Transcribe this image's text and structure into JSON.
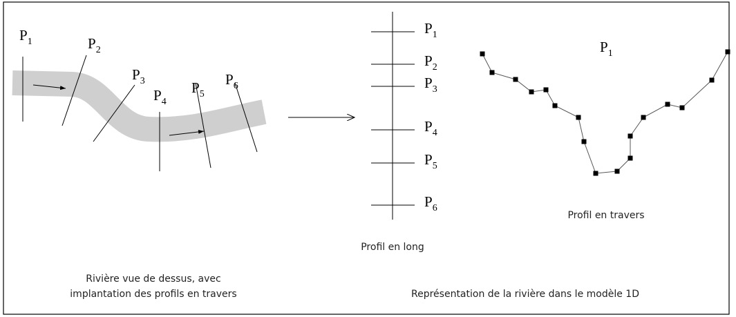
{
  "top_view": {
    "profiles": [
      {
        "base": "P",
        "sub": "1"
      },
      {
        "base": "P",
        "sub": "2"
      },
      {
        "base": "P",
        "sub": "3"
      },
      {
        "base": "P",
        "sub": "4"
      },
      {
        "base": "P",
        "sub": "5"
      },
      {
        "base": "P",
        "sub": "6"
      }
    ],
    "caption": [
      "Rivière vue de dessus, avec",
      "implantation des profils en travers"
    ]
  },
  "long_profile": {
    "profiles": [
      {
        "base": "P",
        "sub": "1"
      },
      {
        "base": "P",
        "sub": "2"
      },
      {
        "base": "P",
        "sub": "3"
      },
      {
        "base": "P",
        "sub": "4"
      },
      {
        "base": "P",
        "sub": "5"
      },
      {
        "base": "P",
        "sub": "6"
      }
    ],
    "caption": "Profil en long"
  },
  "cross_profile": {
    "title": {
      "base": "P",
      "sub": "1"
    },
    "caption": "Profil en travers"
  },
  "model_caption": "Représentation de la rivière dans le modèle 1D"
}
